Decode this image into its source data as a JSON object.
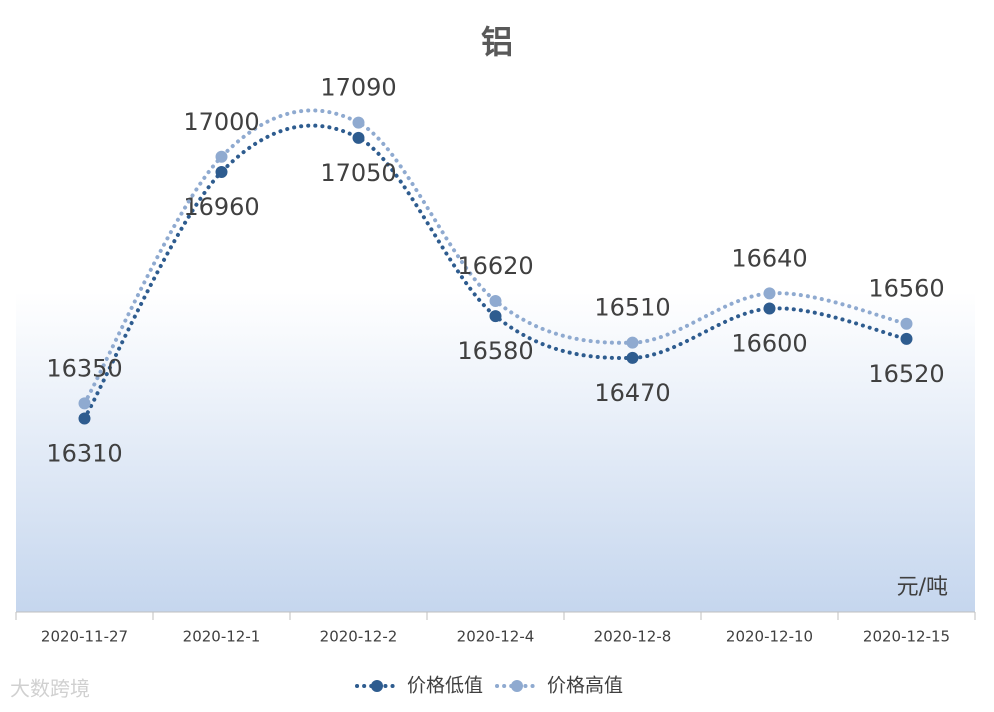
{
  "chart_data": {
    "type": "line",
    "title": "铝",
    "unit_label": "元/吨",
    "categories": [
      "2020-11-27",
      "2020-12-1",
      "2020-12-2",
      "2020-12-4",
      "2020-12-8",
      "2020-12-10",
      "2020-12-15"
    ],
    "series": [
      {
        "name": "价格低值",
        "color": "#2e5c8f",
        "values": [
          16310,
          16960,
          17050,
          16580,
          16470,
          16600,
          16520
        ],
        "label_position": "below"
      },
      {
        "name": "价格高值",
        "color": "#8faad0",
        "values": [
          16350,
          17000,
          17090,
          16620,
          16510,
          16640,
          16560
        ],
        "label_position": "above"
      }
    ],
    "ylim": [
      15800,
      17300
    ],
    "smooth": true,
    "legend": "bottom",
    "watermark": "大数跨境"
  }
}
